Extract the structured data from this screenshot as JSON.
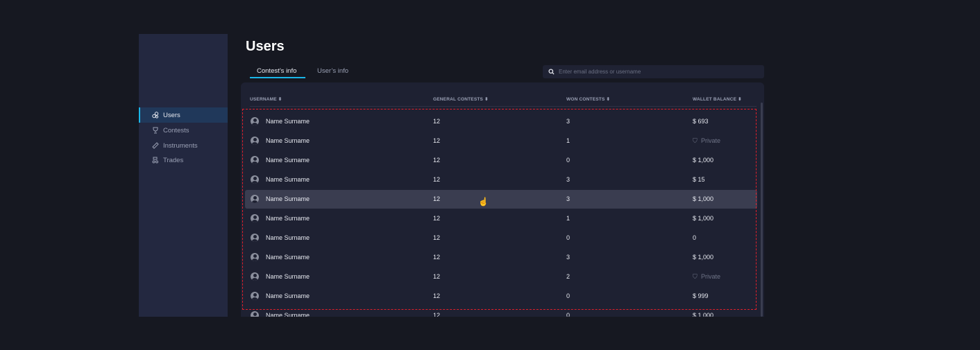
{
  "sidebar": {
    "items": [
      {
        "label": "Users",
        "icon": "users-icon",
        "active": true
      },
      {
        "label": "Contests",
        "icon": "trophy-icon"
      },
      {
        "label": "Instruments",
        "icon": "ruler-icon"
      },
      {
        "label": "Trades",
        "icon": "trades-icon"
      }
    ]
  },
  "page": {
    "title": "Users"
  },
  "tabs": [
    {
      "label": "Contest’s info",
      "active": true
    },
    {
      "label": "User’s info"
    }
  ],
  "search": {
    "placeholder": "Enter email address or username",
    "value": ""
  },
  "table": {
    "columns": [
      "USERNAME ⬍",
      "GENERAL CONTESTS ⬍",
      "WON CONTESTS ⬍",
      "WALLET BALANCE ⬍"
    ],
    "rows": [
      [
        "Name Surname",
        "12",
        "3",
        "$ 693"
      ],
      [
        "Name Surname",
        "12",
        "1",
        "Private"
      ],
      [
        "Name Surname",
        "12",
        "0",
        "$ 1,000"
      ],
      [
        "Name Surname",
        "12",
        "3",
        "$ 15"
      ],
      [
        "Name Surname",
        "12",
        "3",
        "$ 1,000"
      ],
      [
        "Name Surname",
        "12",
        "1",
        "$ 1,000"
      ],
      [
        "Name Surname",
        "12",
        "0",
        "0"
      ],
      [
        "Name Surname",
        "12",
        "3",
        "$ 1,000"
      ],
      [
        "Name Surname",
        "12",
        "2",
        "Private"
      ],
      [
        "Name Surname",
        "12",
        "0",
        "$ 999"
      ],
      [
        "Name Surname",
        "12",
        "0",
        "$ 1,000"
      ]
    ],
    "hovered_row": 4
  },
  "colors": {
    "accent": "#1ab6e8",
    "background": "#161821",
    "sidebar": "#232840",
    "card": "#1e2132",
    "selection": "#e0202a"
  }
}
